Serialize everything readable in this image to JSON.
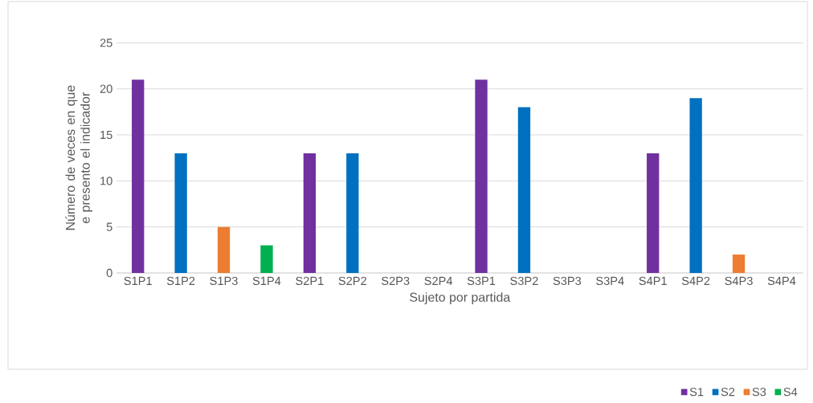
{
  "chart_data": {
    "type": "bar",
    "xlabel": "Sujeto por partida",
    "ylabel": "Número de veces en que e presento el indicador",
    "categories": [
      "S1P1",
      "S1P2",
      "S1P3",
      "S1P4",
      "S2P1",
      "S2P2",
      "S2P3",
      "S2P4",
      "S3P1",
      "S3P2",
      "S3P3",
      "S3P4",
      "S4P1",
      "S4P2",
      "S4P3",
      "S4P4"
    ],
    "series": [
      {
        "name": "S1",
        "color": "#7030a0",
        "values": [
          21,
          null,
          null,
          null,
          13,
          null,
          null,
          null,
          21,
          null,
          null,
          null,
          13,
          null,
          null,
          null
        ]
      },
      {
        "name": "S2",
        "color": "#0070c0",
        "values": [
          null,
          13,
          null,
          null,
          null,
          13,
          null,
          null,
          null,
          18,
          null,
          null,
          null,
          19,
          null,
          null
        ]
      },
      {
        "name": "S3",
        "color": "#ed7d31",
        "values": [
          null,
          null,
          5,
          null,
          null,
          null,
          null,
          null,
          null,
          null,
          null,
          null,
          null,
          null,
          2,
          null
        ]
      },
      {
        "name": "S4",
        "color": "#00b050",
        "values": [
          null,
          null,
          null,
          3,
          null,
          null,
          null,
          null,
          null,
          null,
          null,
          null,
          null,
          null,
          null,
          null
        ]
      }
    ],
    "ylim": [
      0,
      25
    ],
    "yticks": [
      0,
      5,
      10,
      15,
      20,
      25
    ],
    "grid": "y",
    "legend": "bottom right"
  }
}
